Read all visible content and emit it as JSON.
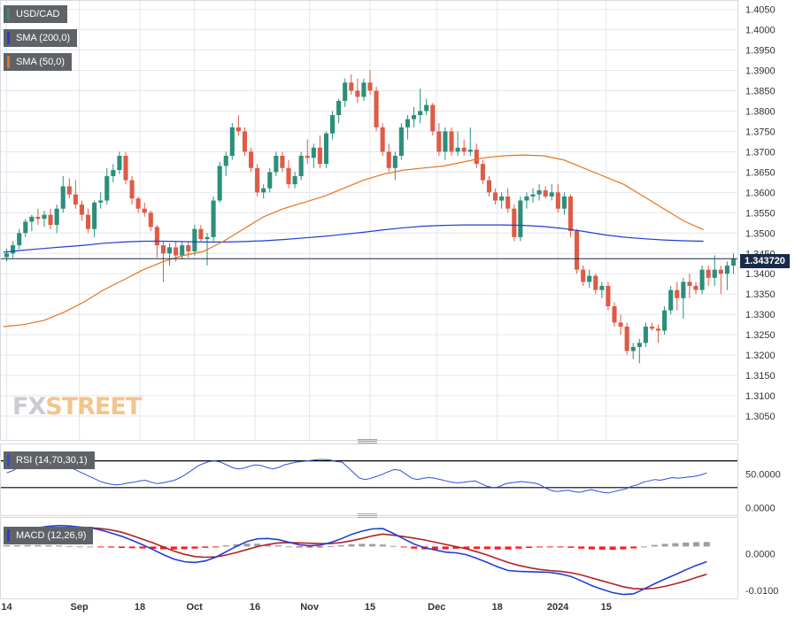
{
  "chart_data": [
    {
      "type": "candlestick",
      "symbol": "USD/CAD",
      "overlays": [
        {
          "name": "SMA (200,0)",
          "color": "#1f3fd6"
        },
        {
          "name": "SMA (50,0)",
          "color": "#e8731a"
        }
      ],
      "ylim": [
        1.3,
        1.406
      ],
      "y_ticks": [
        "1.4050",
        "1.4000",
        "1.3950",
        "1.3900",
        "1.3850",
        "1.3800",
        "1.3750",
        "1.3700",
        "1.3650",
        "1.3600",
        "1.3550",
        "1.3500",
        "1.3450",
        "1.3400",
        "1.3350",
        "1.3300",
        "1.3250",
        "1.3200",
        "1.3150",
        "1.3100",
        "1.3050"
      ],
      "x_ticks": [
        "14",
        "Sep",
        "18",
        "Oct",
        "16",
        "Nov",
        "15",
        "Dec",
        "18",
        "2024",
        "15"
      ],
      "last_price_label": "1.343720",
      "candles": [
        [
          1.3441,
          1.3462,
          1.343,
          1.345
        ],
        [
          1.345,
          1.348,
          1.3438,
          1.347
        ],
        [
          1.347,
          1.351,
          1.346,
          1.35
        ],
        [
          1.35,
          1.3535,
          1.349,
          1.3528
        ],
        [
          1.3528,
          1.3545,
          1.3505,
          1.354
        ],
        [
          1.354,
          1.356,
          1.352,
          1.3535
        ],
        [
          1.3535,
          1.3555,
          1.3515,
          1.3545
        ],
        [
          1.3545,
          1.356,
          1.351,
          1.352
        ],
        [
          1.352,
          1.357,
          1.35,
          1.356
        ],
        [
          1.356,
          1.364,
          1.355,
          1.3615
        ],
        [
          1.3615,
          1.3635,
          1.3585,
          1.3595
        ],
        [
          1.3595,
          1.363,
          1.356,
          1.357
        ],
        [
          1.357,
          1.358,
          1.353,
          1.3545
        ],
        [
          1.3545,
          1.356,
          1.35,
          1.351
        ],
        [
          1.351,
          1.358,
          1.349,
          1.3575
        ],
        [
          1.3575,
          1.36,
          1.356,
          1.358
        ],
        [
          1.358,
          1.366,
          1.357,
          1.364
        ],
        [
          1.364,
          1.367,
          1.3625,
          1.3655
        ],
        [
          1.3655,
          1.37,
          1.3645,
          1.369
        ],
        [
          1.369,
          1.37,
          1.362,
          1.363
        ],
        [
          1.363,
          1.364,
          1.357,
          1.3585
        ],
        [
          1.3585,
          1.359,
          1.355,
          1.356
        ],
        [
          1.356,
          1.3575,
          1.354,
          1.355
        ],
        [
          1.355,
          1.3555,
          1.3505,
          1.3515
        ],
        [
          1.3515,
          1.352,
          1.344,
          1.347
        ],
        [
          1.347,
          1.348,
          1.338,
          1.345
        ],
        [
          1.345,
          1.3475,
          1.342,
          1.3465
        ],
        [
          1.3465,
          1.348,
          1.343,
          1.3445
        ],
        [
          1.3445,
          1.348,
          1.3435,
          1.347
        ],
        [
          1.347,
          1.348,
          1.344,
          1.3455
        ],
        [
          1.3455,
          1.352,
          1.3445,
          1.351
        ],
        [
          1.351,
          1.352,
          1.348,
          1.3485
        ],
        [
          1.3485,
          1.35,
          1.342,
          1.349
        ],
        [
          1.349,
          1.359,
          1.348,
          1.358
        ],
        [
          1.358,
          1.3675,
          1.3575,
          1.3665
        ],
        [
          1.3665,
          1.37,
          1.364,
          1.369
        ],
        [
          1.369,
          1.377,
          1.368,
          1.376
        ],
        [
          1.376,
          1.379,
          1.374,
          1.375
        ],
        [
          1.375,
          1.376,
          1.369,
          1.37
        ],
        [
          1.37,
          1.371,
          1.365,
          1.366
        ],
        [
          1.366,
          1.367,
          1.359,
          1.36
        ],
        [
          1.36,
          1.362,
          1.3585,
          1.361
        ],
        [
          1.361,
          1.366,
          1.36,
          1.365
        ],
        [
          1.365,
          1.37,
          1.364,
          1.369
        ],
        [
          1.369,
          1.37,
          1.365,
          1.366
        ],
        [
          1.366,
          1.368,
          1.361,
          1.362
        ],
        [
          1.362,
          1.365,
          1.361,
          1.364
        ],
        [
          1.364,
          1.37,
          1.363,
          1.369
        ],
        [
          1.369,
          1.373,
          1.367,
          1.3685
        ],
        [
          1.3685,
          1.372,
          1.366,
          1.371
        ],
        [
          1.371,
          1.374,
          1.366,
          1.367
        ],
        [
          1.367,
          1.375,
          1.366,
          1.3745
        ],
        [
          1.3745,
          1.38,
          1.373,
          1.379
        ],
        [
          1.379,
          1.383,
          1.377,
          1.3825
        ],
        [
          1.3825,
          1.388,
          1.381,
          1.387
        ],
        [
          1.387,
          1.389,
          1.384,
          1.385
        ],
        [
          1.385,
          1.388,
          1.382,
          1.3835
        ],
        [
          1.3835,
          1.388,
          1.3825,
          1.387
        ],
        [
          1.387,
          1.39,
          1.384,
          1.385
        ],
        [
          1.385,
          1.386,
          1.375,
          1.376
        ],
        [
          1.376,
          1.377,
          1.369,
          1.37
        ],
        [
          1.37,
          1.372,
          1.365,
          1.366
        ],
        [
          1.366,
          1.37,
          1.363,
          1.369
        ],
        [
          1.369,
          1.377,
          1.368,
          1.376
        ],
        [
          1.376,
          1.379,
          1.373,
          1.378
        ],
        [
          1.378,
          1.381,
          1.376,
          1.379
        ],
        [
          1.379,
          1.3855,
          1.377,
          1.38
        ],
        [
          1.38,
          1.383,
          1.379,
          1.3815
        ],
        [
          1.3815,
          1.382,
          1.374,
          1.375
        ],
        [
          1.375,
          1.377,
          1.369,
          1.37
        ],
        [
          1.37,
          1.376,
          1.368,
          1.375
        ],
        [
          1.375,
          1.376,
          1.369,
          1.37
        ],
        [
          1.37,
          1.375,
          1.369,
          1.371
        ],
        [
          1.371,
          1.373,
          1.369,
          1.37
        ],
        [
          1.37,
          1.376,
          1.369,
          1.3705
        ],
        [
          1.3705,
          1.372,
          1.366,
          1.367
        ],
        [
          1.367,
          1.368,
          1.362,
          1.363
        ],
        [
          1.363,
          1.364,
          1.359,
          1.36
        ],
        [
          1.36,
          1.361,
          1.357,
          1.358
        ],
        [
          1.358,
          1.36,
          1.356,
          1.359
        ],
        [
          1.359,
          1.361,
          1.355,
          1.356
        ],
        [
          1.356,
          1.357,
          1.348,
          1.349
        ],
        [
          1.349,
          1.359,
          1.348,
          1.358
        ],
        [
          1.358,
          1.36,
          1.356,
          1.359
        ],
        [
          1.359,
          1.361,
          1.3575,
          1.3595
        ],
        [
          1.3595,
          1.362,
          1.358,
          1.3605
        ],
        [
          1.3605,
          1.3615,
          1.3585,
          1.359
        ],
        [
          1.359,
          1.362,
          1.358,
          1.36
        ],
        [
          1.36,
          1.362,
          1.355,
          1.356
        ],
        [
          1.356,
          1.36,
          1.3545,
          1.359
        ],
        [
          1.359,
          1.3595,
          1.349,
          1.3505
        ],
        [
          1.3505,
          1.351,
          1.34,
          1.341
        ],
        [
          1.341,
          1.342,
          1.337,
          1.338
        ],
        [
          1.338,
          1.341,
          1.3365,
          1.3395
        ],
        [
          1.3395,
          1.34,
          1.335,
          1.336
        ],
        [
          1.336,
          1.338,
          1.334,
          1.337
        ],
        [
          1.337,
          1.338,
          1.331,
          1.332
        ],
        [
          1.332,
          1.333,
          1.327,
          1.328
        ],
        [
          1.328,
          1.33,
          1.325,
          1.327
        ],
        [
          1.327,
          1.328,
          1.32,
          1.321
        ],
        [
          1.321,
          1.323,
          1.319,
          1.322
        ],
        [
          1.322,
          1.324,
          1.318,
          1.323
        ],
        [
          1.323,
          1.328,
          1.322,
          1.327
        ],
        [
          1.327,
          1.328,
          1.326,
          1.3265
        ],
        [
          1.3265,
          1.3275,
          1.323,
          1.326
        ],
        [
          1.326,
          1.332,
          1.325,
          1.331
        ],
        [
          1.331,
          1.337,
          1.33,
          1.336
        ],
        [
          1.336,
          1.338,
          1.331,
          1.334
        ],
        [
          1.334,
          1.339,
          1.329,
          1.338
        ],
        [
          1.338,
          1.34,
          1.334,
          1.337
        ],
        [
          1.337,
          1.338,
          1.335,
          1.336
        ],
        [
          1.336,
          1.342,
          1.335,
          1.341
        ],
        [
          1.341,
          1.342,
          1.337,
          1.339
        ],
        [
          1.339,
          1.3445,
          1.337,
          1.341
        ],
        [
          1.341,
          1.342,
          1.335,
          1.34
        ],
        [
          1.34,
          1.343,
          1.336,
          1.342
        ],
        [
          1.342,
          1.345,
          1.34,
          1.3437
        ]
      ],
      "sma200": [
        1.3453,
        1.3458,
        1.3462,
        1.3466,
        1.347,
        1.3475,
        1.3478,
        1.348,
        1.348,
        1.3479,
        1.3478,
        1.3478,
        1.3479,
        1.3481,
        1.3484,
        1.3488,
        1.3492,
        1.3497,
        1.3502,
        1.3508,
        1.3513,
        1.3517,
        1.3519,
        1.352,
        1.352,
        1.352,
        1.3519,
        1.3516,
        1.3511,
        1.3504,
        1.3496,
        1.349,
        1.3486,
        1.3483,
        1.3481,
        1.348
      ],
      "sma50": [
        1.327,
        1.3275,
        1.3285,
        1.3305,
        1.333,
        1.336,
        1.3385,
        1.341,
        1.343,
        1.3445,
        1.3455,
        1.348,
        1.351,
        1.354,
        1.356,
        1.3575,
        1.359,
        1.361,
        1.363,
        1.3645,
        1.3655,
        1.366,
        1.3665,
        1.3675,
        1.3685,
        1.369,
        1.3692,
        1.369,
        1.368,
        1.366,
        1.364,
        1.362,
        1.359,
        1.356,
        1.353,
        1.3508
      ]
    },
    {
      "type": "line",
      "indicator": "RSI (14,70,30,1)",
      "y_ticks": [
        "50.0000",
        "0.0000"
      ],
      "levels": [
        70,
        30
      ],
      "ylim": [
        -6,
        88
      ],
      "values": [
        52,
        55,
        60,
        63,
        66,
        70,
        72,
        74,
        71,
        68,
        64,
        60,
        56,
        52,
        48,
        44,
        40,
        37,
        35,
        34,
        35,
        37,
        38,
        40,
        41,
        38,
        36,
        37,
        39,
        41,
        45,
        50,
        56,
        62,
        66,
        69,
        70,
        68,
        64,
        60,
        58,
        59,
        62,
        64,
        63,
        60,
        58,
        60,
        64,
        66,
        68,
        69,
        70,
        71,
        72,
        72,
        71,
        69,
        68,
        60,
        52,
        44,
        42,
        44,
        47,
        50,
        54,
        57,
        56,
        50,
        44,
        42,
        44,
        45,
        44,
        42,
        40,
        38,
        37,
        38,
        39,
        40,
        36,
        32,
        30,
        31,
        35,
        37,
        38,
        39,
        38,
        37,
        35,
        30,
        26,
        24,
        25,
        26,
        24,
        23,
        25,
        27,
        25,
        23,
        22,
        24,
        26,
        28,
        32,
        34,
        38,
        40,
        42,
        41,
        43,
        45,
        44,
        45,
        46,
        47,
        49,
        52
      ]
    },
    {
      "type": "macd",
      "indicator": "MACD (12,26,9)",
      "y_ticks": [
        "0.0000",
        "-0.0100"
      ],
      "ylim": [
        -0.0112,
        0.0085
      ],
      "macd": [
        0.005,
        0.0056,
        0.0064,
        0.007,
        0.0074,
        0.0076,
        0.0075,
        0.0072,
        0.007,
        0.0064,
        0.0056,
        0.0047,
        0.0036,
        0.0024,
        0.0011,
        -0.0003,
        -0.0015,
        -0.0022,
        -0.0024,
        -0.002,
        -0.001,
        0.0005,
        0.002,
        0.0033,
        0.004,
        0.0041,
        0.0038,
        0.0031,
        0.0024,
        0.0021,
        0.0023,
        0.003,
        0.004,
        0.0052,
        0.0061,
        0.0067,
        0.0068,
        0.0055,
        0.004,
        0.0026,
        0.0016,
        0.001,
        0.0004,
        0.0002,
        -0.0003,
        -0.0013,
        -0.0024,
        -0.0036,
        -0.0046,
        -0.0048,
        -0.0049,
        -0.005,
        -0.0051,
        -0.0055,
        -0.0062,
        -0.0074,
        -0.0087,
        -0.0097,
        -0.0106,
        -0.0111,
        -0.0109,
        -0.0096,
        -0.0082,
        -0.0069,
        -0.0057,
        -0.0044,
        -0.0032,
        -0.0022
      ],
      "signal": [
        0.004,
        0.0046,
        0.0053,
        0.0059,
        0.0064,
        0.0068,
        0.0071,
        0.0071,
        0.007,
        0.0068,
        0.0064,
        0.0058,
        0.0049,
        0.0039,
        0.0029,
        0.0018,
        0.0007,
        -0.0002,
        -0.0008,
        -0.001,
        -0.0009,
        -0.0004,
        0.0003,
        0.0011,
        0.0019,
        0.0025,
        0.0029,
        0.003,
        0.0029,
        0.0028,
        0.0027,
        0.0027,
        0.003,
        0.0035,
        0.0041,
        0.0048,
        0.0053,
        0.005,
        0.0046,
        0.0042,
        0.0037,
        0.0031,
        0.0025,
        0.0019,
        0.0013,
        0.0005,
        -0.0004,
        -0.0014,
        -0.0024,
        -0.0032,
        -0.0038,
        -0.0043,
        -0.0046,
        -0.0048,
        -0.0052,
        -0.0058,
        -0.0066,
        -0.0074,
        -0.0082,
        -0.009,
        -0.0095,
        -0.0096,
        -0.0094,
        -0.0089,
        -0.0082,
        -0.0074,
        -0.0065,
        -0.0056
      ]
    }
  ],
  "legend": {
    "symbol": "USD/CAD",
    "sma200": "SMA (200,0)",
    "sma50": "SMA (50,0)",
    "rsi": "RSI (14,70,30,1)",
    "macd": "MACD (12,26,9)"
  },
  "watermark": {
    "part1": "FX",
    "part2": "STREET"
  },
  "colors": {
    "up": "#2b8f7a",
    "down": "#de5b47",
    "sma200": "#1f3fd6",
    "sma50": "#e8731a",
    "rsi": "#2f4ed8",
    "macd": "#1f3fd6",
    "signal": "#b22222",
    "hist_up": "#9e9e9e",
    "hist_down": "#ff1a1a",
    "grid": "#e3e6eb",
    "badge": "#1a2b4a"
  }
}
